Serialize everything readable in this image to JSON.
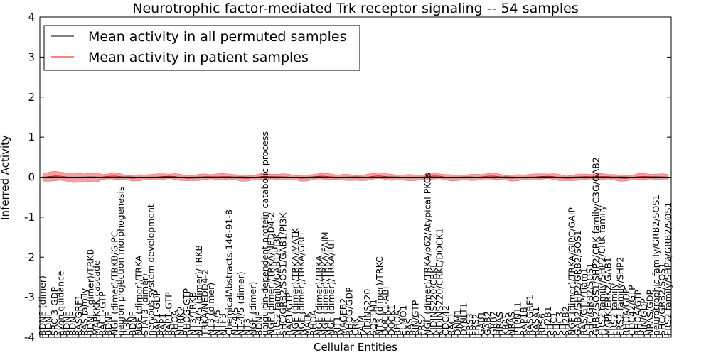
{
  "chart_data": {
    "type": "line",
    "title": "Neurotrophic factor-mediated Trk receptor signaling -- 54 samples",
    "xlabel": "Cellular Entities",
    "ylabel": "Inferred Activity",
    "ylim": [
      -4,
      4
    ],
    "yticks": [
      -4,
      -3,
      -2,
      -1,
      0,
      1,
      2,
      3,
      4
    ],
    "legend_position": "top-left",
    "colors": {
      "permuted": "#000000",
      "patient": "#ff0000",
      "band_patient": "#f08080",
      "band_permuted": "#c8c8c8"
    },
    "legend": [
      {
        "key": "permuted",
        "label": "Mean activity in all permuted samples"
      },
      {
        "key": "patient",
        "label": "Mean activity in patient samples"
      }
    ],
    "categories": [
      "BDNF (dimer)",
      "BDNF",
      "SRC-3-GDP",
      "axon guidance",
      "BDNF",
      "BDNF",
      "RASGRF1",
      "RAS family",
      "BDNF (dimer)/TRKB",
      "MAPKKK cascade",
      "RAC1-GTP",
      "BDNF",
      "NGF (dimer)/TRKB/GIPC",
      "neuron projection morphogenesis",
      "PI3K",
      "BDNF",
      "NGF (dimer)/TRKA",
      "STAT3 (dimer)",
      "nervous system development",
      "RAP1-GDP",
      "RAP1",
      "RAP1-GTP",
      "RHOA",
      "NTRK2",
      "RHOG-GTP",
      "NT3/TRKB",
      "NT-4/5 (dimer)/TRKB",
      "TRKA/NEDD4-2",
      "NT3 (dimer)",
      "NT4/5",
      "NTF3",
      "ChemicalAbstracts:146-91-8",
      "NT-4/5",
      "NT-4/5 (dimer)",
      "NT3",
      "NGF (dimer)",
      "BDNF",
      "ubiquitin-dependent protein catabolic process",
      "NGF (dimer)/TRKA/NEDD4-2",
      "FRS2 family/GAB1/PI3K",
      "SHC/GRB2/SOS1/GAB1/PI3K",
      "RAP1/GTP",
      "NGF (dimer)/TRKA/MATK",
      "NGF (dimer)/TRKA/GRIT",
      "MATK",
      "RHOA",
      "NGF (dimer)/TRKA",
      "NGF (dimer)/TRKA/FAIM",
      "NGF (dimer)/TRKA/RIT",
      "RIT1",
      "MAGEB2",
      "RHOG/GDP",
      "CRK",
      "FAIM",
      "KIDINS220",
      "SQSTM1",
      "NT3 (dimer)/TRKC",
      "DOCK1-ABI",
      "DOCK1",
      "RHOA",
      "ELMO1",
      "RAS",
      "RIN/GTP",
      "FRS2",
      "NGF (dimer)/TRKA/p62/Atypical PKCs",
      "KIDINS220/CRKL",
      "KIDINS220/CRKL/DOCK1",
      "CDC42",
      "RAC1",
      "DNM1",
      "DYNLT1",
      "FRS3",
      "FRS2",
      "GAB1",
      "GAB2",
      "GRB2",
      "HRAS",
      "KRAS",
      "NRAS",
      "PTPN11",
      "RAP1B",
      "RASGRF1",
      "RASA1",
      "RPS6",
      "SH2B1",
      "SHC1",
      "SHC3",
      "SH2B2",
      "NGF (dimer)/TRKA/GIPC/GAIP",
      "GAB2/SHP2/GRB2/SOS1",
      "RAS/GTP/Tiam1",
      "SHC/GRB2/SOS1",
      "GRB2/SOS1/SHP2/CRK family/C3G/GAB2",
      "FRS2 family/SHP2/CRK family",
      "MAPK/ERK2/GAB1",
      "FRS2 family",
      "FRS2 family/SHP2",
      "RHOA/GDP",
      "CDC42/GTP",
      "RHOA/GTP",
      "RIN/GDP",
      "NRAS/GDP",
      "neurotrophic family/GRB2/SOS1",
      "SHC/GRB2/SOS1",
      "FRS2 family/SHP2/GRB2/SOS1"
    ]
  }
}
